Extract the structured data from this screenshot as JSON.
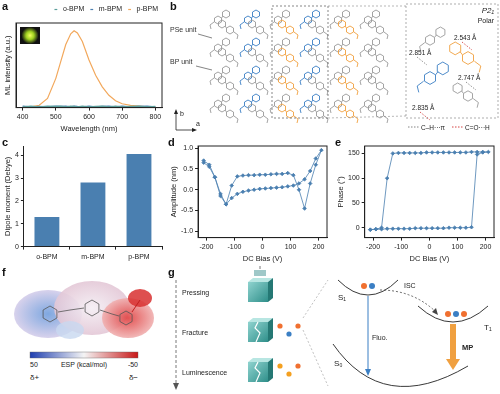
{
  "chart_data": [
    {
      "panel_label": "a",
      "type": "line",
      "x": [
        400,
        425,
        450,
        475,
        500,
        515,
        530,
        545,
        555,
        565,
        580,
        600,
        620,
        640,
        660,
        680,
        700,
        725,
        750,
        775,
        800
      ],
      "series": [
        {
          "name": "o-BPM",
          "color": "#5b9e9b",
          "values": [
            0.01,
            0.02,
            0.01,
            0.02,
            0.015,
            0.02,
            0.01,
            0.02,
            0.015,
            0.01,
            0.02,
            0.01,
            0.015,
            0.02,
            0.01,
            0.02,
            0.01,
            0.015,
            0.02,
            0.01,
            0.015
          ]
        },
        {
          "name": "m-BPM",
          "color": "#4a7fb0",
          "values": [
            0.02,
            0.01,
            0.015,
            0.01,
            0.02,
            0.015,
            0.02,
            0.01,
            0.02,
            0.015,
            0.01,
            0.02,
            0.01,
            0.015,
            0.02,
            0.01,
            0.02,
            0.01,
            0.015,
            0.02,
            0.01
          ]
        },
        {
          "name": "p-BPM",
          "color": "#f2a85c",
          "values": [
            0.0,
            0.01,
            0.03,
            0.12,
            0.38,
            0.6,
            0.82,
            0.96,
            1.0,
            0.97,
            0.86,
            0.62,
            0.42,
            0.27,
            0.16,
            0.09,
            0.05,
            0.03,
            0.02,
            0.01,
            0.01
          ]
        }
      ],
      "x_label": "Wavelength (nm)",
      "y_label": "ML intensity (a.u.)",
      "xlim": [
        380,
        820
      ],
      "xticks": [
        400,
        500,
        600,
        700,
        800
      ],
      "ylim": [
        0,
        1.1
      ],
      "tick_labels": "x",
      "grid": false,
      "legend": "upper right",
      "marker": "none",
      "line_style": "solid"
    },
    {
      "panel_label": "c",
      "type": "bar",
      "categories": [
        "o-BPM",
        "m-BPM",
        "p-BPM"
      ],
      "values": [
        1.3,
        2.8,
        4.05
      ],
      "color": "#4a7fb0",
      "y_label": "Dipole moment (Debye)",
      "ylim": [
        0,
        4.4
      ],
      "yticks": [
        0,
        1,
        2,
        3,
        4
      ],
      "grid": false
    },
    {
      "panel_label": "d",
      "type": "line",
      "x": [
        -210,
        -190,
        -170,
        -150,
        -130,
        -110,
        -90,
        -70,
        -50,
        -30,
        -10,
        10,
        30,
        50,
        70,
        90,
        110,
        130,
        150,
        170,
        190,
        210,
        190,
        170,
        150,
        130,
        110,
        90,
        70,
        50,
        30,
        10,
        -10,
        -30,
        -50,
        -70,
        -90,
        -110,
        -130,
        -150,
        -170,
        -190,
        -210
      ],
      "values": [
        0.65,
        0.55,
        0.3,
        -0.15,
        -0.35,
        0.1,
        0.32,
        0.34,
        0.35,
        0.35,
        0.36,
        0.36,
        0.37,
        0.38,
        0.38,
        0.4,
        0.35,
        0.0,
        -0.45,
        0.15,
        0.6,
        0.95,
        0.75,
        0.45,
        0.25,
        0.15,
        0.1,
        0.08,
        0.06,
        0.05,
        0.04,
        0.03,
        0.02,
        0.0,
        -0.02,
        -0.05,
        -0.1,
        -0.2,
        -0.35,
        -0.1,
        0.3,
        0.6,
        0.7
      ],
      "color": "#4a7fb0",
      "marker": "diamond",
      "line_style": "solid",
      "x_label": "DC Bias (V)",
      "y_label": "Amplitude (nm)",
      "xlim": [
        -230,
        230
      ],
      "xticks": [
        -200,
        -100,
        0,
        100,
        200
      ],
      "ylim": [
        -1.15,
        1.05
      ],
      "yticks": [
        {
          "value": -1,
          "label": "-1.0"
        },
        {
          "value": -0.5,
          "label": "-0.5"
        },
        {
          "value": 0,
          "label": "0.0"
        },
        {
          "value": 0.5,
          "label": "0.5"
        },
        {
          "value": 1,
          "label": "1.0"
        }
      ],
      "grid": false
    },
    {
      "panel_label": "e",
      "type": "line",
      "x": [
        -210,
        -190,
        -170,
        -150,
        -130,
        -110,
        -90,
        -70,
        -50,
        -30,
        -10,
        10,
        30,
        50,
        70,
        90,
        110,
        130,
        150,
        170,
        190,
        210,
        190,
        170,
        150,
        130,
        110,
        90,
        70,
        50,
        30,
        10,
        -10,
        -30,
        -50,
        -70,
        -90,
        -110,
        -130,
        -150,
        -170,
        -190,
        -210
      ],
      "values": [
        -4,
        -3,
        -3,
        -2,
        -2,
        -2,
        -2,
        -2,
        -1,
        -1,
        -1,
        -1,
        -1,
        -1,
        0,
        0,
        0,
        0,
        1,
        148,
        152,
        153,
        153,
        153,
        153,
        152,
        152,
        152,
        152,
        152,
        152,
        152,
        152,
        151,
        151,
        151,
        151,
        151,
        150,
        100,
        0,
        -3,
        -4
      ],
      "color": "#4a7fb0",
      "marker": "diamond",
      "line_style": "solid",
      "x_label": "DC Bias (V)",
      "y_label": "Phase (°)",
      "xlim": [
        -230,
        230
      ],
      "xticks": [
        -200,
        -100,
        0,
        100,
        200
      ],
      "ylim": [
        -20,
        165
      ],
      "yticks": [
        0,
        50,
        100,
        150
      ],
      "grid": false
    }
  ],
  "diagrams": {
    "b": {
      "panel_label": "b",
      "units": [
        "PSe unit",
        "BP unit"
      ],
      "space_group": "P2₁",
      "polarity": "Polar",
      "distances": [
        "2.851 Å",
        "2.543 Å",
        "2.747 Å",
        "2.835 Å"
      ],
      "interactions": [
        "C–H···π",
        "C=O···H"
      ],
      "axes": [
        "b",
        "a"
      ]
    },
    "f": {
      "panel_label": "f",
      "colorbar": {
        "label": "ESP (kcal/mol)",
        "range": [
          50,
          -50
        ],
        "ticks": [
          50,
          -50
        ]
      },
      "charges": [
        "δ+",
        "δ−"
      ]
    },
    "g": {
      "panel_label": "g",
      "steps": [
        "Pressing",
        "Fracture",
        "Luminescence"
      ],
      "states": [
        "S₁",
        "T₁",
        "S₀"
      ],
      "processes": [
        "ISC",
        "Fluo.",
        "MP"
      ]
    }
  }
}
